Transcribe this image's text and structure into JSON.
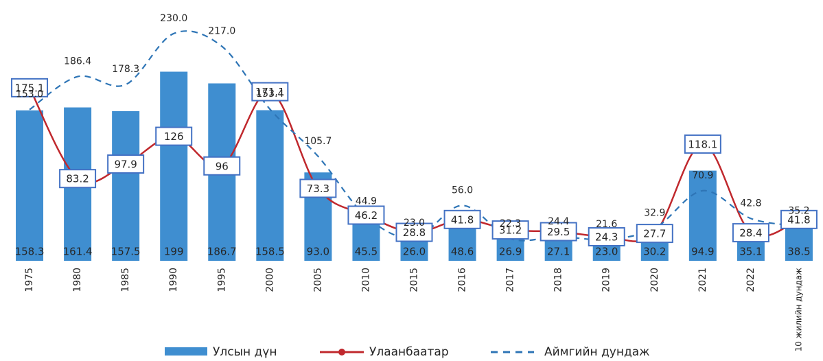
{
  "chart_data": {
    "type": "bar-line",
    "categories": [
      "1975",
      "1980",
      "1985",
      "1990",
      "1995",
      "2000",
      "2005",
      "2010",
      "2015",
      "2016",
      "2017",
      "2018",
      "2019",
      "2020",
      "2021",
      "2022",
      "10 жилийн дундаж"
    ],
    "series": [
      {
        "name": "Улсын дүн",
        "type": "bar",
        "axis": "y2",
        "color": "#3f8ed0",
        "values": [
          158.3,
          161.4,
          157.5,
          199,
          186.7,
          158.5,
          93.0,
          45.5,
          26.0,
          48.6,
          26.9,
          27.1,
          23.0,
          30.2,
          94.9,
          35.1,
          38.5
        ],
        "value_labels": [
          "158.3",
          "161.4",
          "157.5",
          "199",
          "186.7",
          "158.5",
          "93.0",
          "45.5",
          "26.0",
          "48.6",
          "26.9",
          "27.1",
          "23.0",
          "30.2",
          "94.9",
          "35.1",
          "38.5"
        ]
      },
      {
        "name": "Улаанбаатар",
        "type": "line",
        "color": "#c0282d",
        "values": [
          175.1,
          83.2,
          97.9,
          126,
          96,
          171.1,
          73.3,
          46.2,
          28.8,
          41.8,
          31.2,
          29.5,
          24.3,
          27.7,
          118.1,
          28.4,
          41.8
        ]
      },
      {
        "name": "Аймгийн дундаж",
        "type": "dashed",
        "color": "#2e75b6",
        "values": [
          153.0,
          186.4,
          178.3,
          230.0,
          217.0,
          153.4,
          105.7,
          44.9,
          23.0,
          56.0,
          22.3,
          24.4,
          21.6,
          32.9,
          70.9,
          42.8,
          35.2
        ],
        "value_labels": [
          "153.0",
          "186.4",
          "178.3",
          "230.0",
          "217.0",
          "153.4",
          "105.7",
          "44.9",
          "23.0",
          "56.0",
          "22.3",
          "24.4",
          "21.6",
          "32.9",
          "70.9",
          "42.8",
          "35.2"
        ]
      }
    ],
    "ylim": [
      0,
      250
    ],
    "y2lim": [
      0,
      260
    ]
  }
}
